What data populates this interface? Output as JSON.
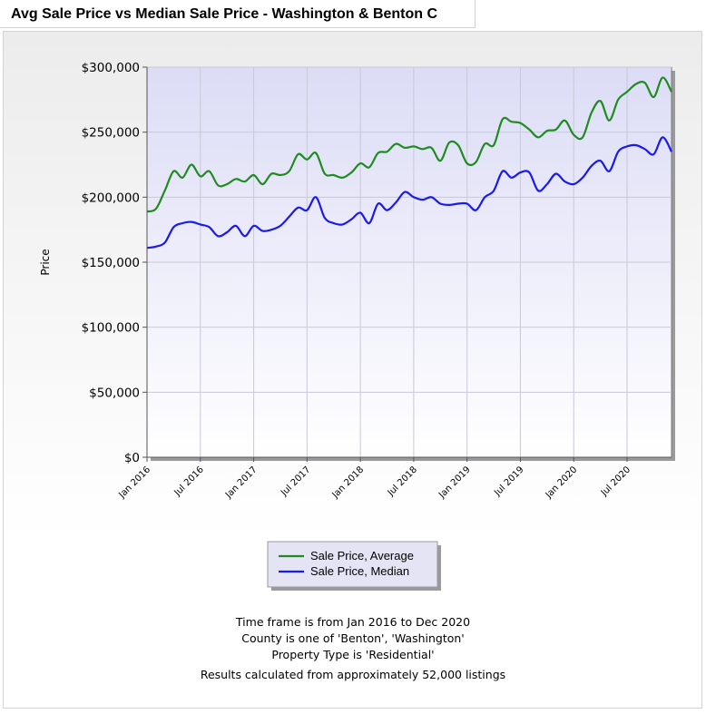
{
  "page": {
    "title": "Avg Sale Price vs Median Sale Price - Washington & Benton C"
  },
  "notes": {
    "line1": "Time frame is from Jan 2016 to Dec 2020",
    "line2": "County is one of 'Benton', 'Washington'",
    "line3": "Property Type is 'Residential'",
    "line4": "Results calculated from approximately 52,000 listings"
  },
  "chart_data": {
    "type": "line",
    "title": "Avg Sale Price vs Median Sale Price - Washington & Benton C",
    "xlabel": "",
    "ylabel": "Price",
    "x_ticks": [
      "Jan 2016",
      "Jul 2016",
      "Jan 2017",
      "Jul 2017",
      "Jan 2018",
      "Jul 2018",
      "Jan 2019",
      "Jul 2019",
      "Jan 2020",
      "Jul 2020"
    ],
    "y_ticks": [
      "$0",
      "$50,000",
      "$100,000",
      "$150,000",
      "$200,000",
      "$250,000",
      "$300,000"
    ],
    "ylim": [
      0,
      300000
    ],
    "xlim": [
      "Jan 2016",
      "Dec 2020"
    ],
    "grid": true,
    "legend_position": "bottom-center",
    "x": [
      "2016-01",
      "2016-02",
      "2016-03",
      "2016-04",
      "2016-05",
      "2016-06",
      "2016-07",
      "2016-08",
      "2016-09",
      "2016-10",
      "2016-11",
      "2016-12",
      "2017-01",
      "2017-02",
      "2017-03",
      "2017-04",
      "2017-05",
      "2017-06",
      "2017-07",
      "2017-08",
      "2017-09",
      "2017-10",
      "2017-11",
      "2017-12",
      "2018-01",
      "2018-02",
      "2018-03",
      "2018-04",
      "2018-05",
      "2018-06",
      "2018-07",
      "2018-08",
      "2018-09",
      "2018-10",
      "2018-11",
      "2018-12",
      "2019-01",
      "2019-02",
      "2019-03",
      "2019-04",
      "2019-05",
      "2019-06",
      "2019-07",
      "2019-08",
      "2019-09",
      "2019-10",
      "2019-11",
      "2019-12",
      "2020-01",
      "2020-02",
      "2020-03",
      "2020-04",
      "2020-05",
      "2020-06",
      "2020-07",
      "2020-08",
      "2020-09",
      "2020-10",
      "2020-11",
      "2020-12"
    ],
    "series": [
      {
        "name": "Sale Price, Average",
        "color": "#1f8c1f",
        "values": [
          189000,
          191000,
          205000,
          220000,
          215000,
          225000,
          216000,
          220000,
          209000,
          210000,
          214000,
          212000,
          217000,
          210000,
          218000,
          217000,
          220000,
          233000,
          229000,
          234000,
          218000,
          217000,
          215000,
          219000,
          226000,
          223000,
          234000,
          235000,
          241000,
          238000,
          239000,
          237000,
          238000,
          228000,
          242000,
          240000,
          226000,
          227000,
          241000,
          240000,
          260000,
          258000,
          257000,
          252000,
          246000,
          251000,
          252000,
          259000,
          248000,
          246000,
          265000,
          274000,
          259000,
          275000,
          281000,
          287000,
          288000,
          277000,
          292000,
          281000
        ]
      },
      {
        "name": "Sale Price, Median",
        "color": "#1a1aee",
        "values": [
          161000,
          162000,
          165000,
          177000,
          180000,
          181000,
          179000,
          177000,
          170000,
          173000,
          178000,
          170000,
          178000,
          174000,
          175000,
          178000,
          185000,
          192000,
          190000,
          200000,
          184000,
          180000,
          179000,
          183000,
          188000,
          180000,
          195000,
          190000,
          196000,
          204000,
          200000,
          198000,
          200000,
          195000,
          194000,
          195000,
          195000,
          190000,
          200000,
          205000,
          220000,
          215000,
          219000,
          219000,
          205000,
          210000,
          218000,
          212000,
          210000,
          215000,
          224000,
          228000,
          220000,
          235000,
          239000,
          240000,
          237000,
          233000,
          246000,
          235000
        ]
      }
    ]
  }
}
